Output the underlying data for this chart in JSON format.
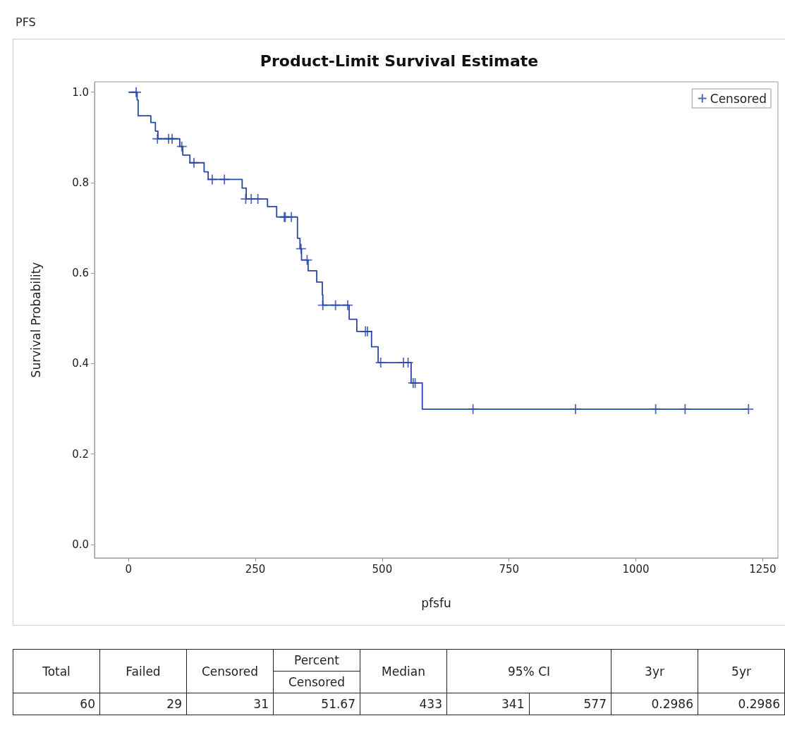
{
  "chart_data": {
    "type": "step",
    "title": "Product-Limit Survival Estimate",
    "xlabel": "pfsfu",
    "ylabel": "Survival Probability",
    "xlim": [
      -67,
      1280
    ],
    "xticks": [
      0,
      250,
      500,
      750,
      1000,
      1250
    ],
    "ylim": [
      -0.03,
      1.023
    ],
    "yticks": [
      {
        "value": 0,
        "label": "0.0"
      },
      {
        "value": 0.2,
        "label": "0.2"
      },
      {
        "value": 0.4,
        "label": "0.4"
      },
      {
        "value": 0.6,
        "label": "0.6"
      },
      {
        "value": 0.8,
        "label": "0.8"
      },
      {
        "value": 1,
        "label": "1.0"
      }
    ],
    "grid": false,
    "legend": "top right",
    "series": [
      {
        "color": "#2846a8",
        "marker": "none",
        "x": [
          0,
          17,
          19,
          44,
          53,
          58,
          101,
          107,
          121,
          149,
          157,
          224,
          232,
          274,
          292,
          333,
          338,
          341,
          354,
          371,
          382,
          383,
          435,
          450,
          479,
          492,
          557,
          579,
          1222
        ],
        "values": [
          1,
          0.983,
          0.948,
          0.933,
          0.914,
          0.897,
          0.88,
          0.861,
          0.844,
          0.824,
          0.807,
          0.788,
          0.764,
          0.747,
          0.724,
          0.677,
          0.654,
          0.629,
          0.605,
          0.58,
          0.552,
          0.529,
          0.498,
          0.471,
          0.437,
          0.402,
          0.357,
          0.299,
          0.299
        ]
      },
      {
        "type": "scatter",
        "name": "Censored",
        "color": "#2846a8",
        "marker": "cross",
        "x": [
          15,
          57,
          79,
          86,
          105,
          129,
          165,
          189,
          231,
          242,
          255,
          307,
          309,
          321,
          340,
          352,
          383,
          408,
          432,
          467,
          471,
          497,
          542,
          551,
          561,
          565,
          679,
          881,
          1039,
          1097,
          1222
        ],
        "values": [
          1,
          0.897,
          0.897,
          0.897,
          0.88,
          0.844,
          0.807,
          0.807,
          0.764,
          0.764,
          0.764,
          0.724,
          0.724,
          0.724,
          0.654,
          0.629,
          0.529,
          0.529,
          0.529,
          0.471,
          0.471,
          0.402,
          0.402,
          0.402,
          0.357,
          0.357,
          0.299,
          0.299,
          0.299,
          0.299,
          0.299
        ]
      }
    ],
    "annotations": [
      "PFS",
      "Total",
      "Failed",
      "Censored",
      "Percent",
      "Censored",
      "Median",
      "95% CI",
      "3yr",
      "5yr",
      "60",
      "29",
      "31",
      "51.67",
      "433",
      "341",
      "577",
      "0.2986",
      "0.2986"
    ]
  }
}
